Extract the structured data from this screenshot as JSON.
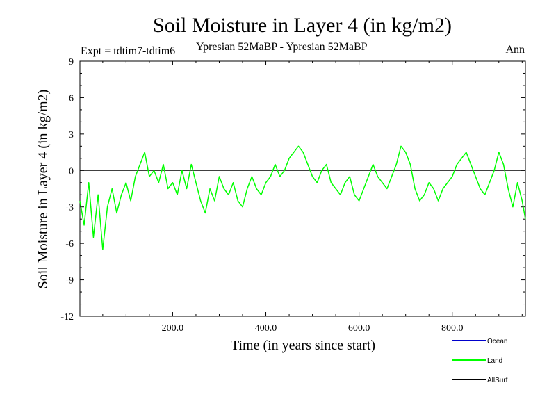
{
  "chart_data": {
    "type": "line",
    "title": "Soil Moisture in Layer 4 (in kg/m2)",
    "subtitle_left": "Expt = tdtim7-tdtim6",
    "subtitle_center": "Ypresian  52MaBP - Ypresian  52MaBP",
    "subtitle_right": "Ann",
    "xlabel": "Time (in years since start)",
    "ylabel": "Soil Moisture in Layer 4 (in kg/m2)",
    "xlim": [
      1,
      957
    ],
    "ylim": [
      -12,
      9
    ],
    "xticks": [
      200,
      400,
      600,
      800
    ],
    "xtick_labels": [
      "200.0",
      "400.0",
      "600.0",
      "800.0"
    ],
    "yticks": [
      -12,
      -9,
      -6,
      -3,
      0,
      3,
      6,
      9
    ],
    "ytick_labels": [
      "-12",
      "-9",
      "-6",
      "-3",
      "0",
      "3",
      "6",
      "9"
    ],
    "zero_line": 0,
    "legend_position": "bottom-right",
    "series": [
      {
        "name": "Ocean",
        "color": "#0000cc",
        "x": [],
        "values": []
      },
      {
        "name": "Land",
        "color": "#00ff00",
        "x": [
          1,
          10,
          20,
          30,
          40,
          50,
          60,
          70,
          80,
          90,
          100,
          110,
          120,
          130,
          140,
          150,
          160,
          170,
          180,
          190,
          200,
          210,
          220,
          230,
          240,
          250,
          260,
          270,
          280,
          290,
          300,
          310,
          320,
          330,
          340,
          350,
          360,
          370,
          380,
          390,
          400,
          410,
          420,
          430,
          440,
          450,
          460,
          470,
          480,
          490,
          500,
          510,
          520,
          530,
          540,
          550,
          560,
          570,
          580,
          590,
          600,
          610,
          620,
          630,
          640,
          650,
          660,
          670,
          680,
          690,
          700,
          710,
          720,
          730,
          740,
          750,
          760,
          770,
          780,
          790,
          800,
          810,
          820,
          830,
          840,
          850,
          860,
          870,
          880,
          890,
          900,
          910,
          920,
          930,
          940,
          950,
          957
        ],
        "values": [
          -2.5,
          -4.5,
          -1.0,
          -5.5,
          -2.0,
          -6.5,
          -3.0,
          -1.5,
          -3.5,
          -2.0,
          -1.0,
          -2.5,
          -0.5,
          0.5,
          1.5,
          -0.5,
          0.0,
          -1.0,
          0.5,
          -1.5,
          -1.0,
          -2.0,
          0.0,
          -1.5,
          0.5,
          -1.0,
          -2.5,
          -3.5,
          -1.5,
          -2.5,
          -0.5,
          -1.5,
          -2.0,
          -1.0,
          -2.5,
          -3.0,
          -1.5,
          -0.5,
          -1.5,
          -2.0,
          -1.0,
          -0.5,
          0.5,
          -0.5,
          0.0,
          1.0,
          1.5,
          2.0,
          1.5,
          0.5,
          -0.5,
          -1.0,
          0.0,
          0.5,
          -1.0,
          -1.5,
          -2.0,
          -1.0,
          -0.5,
          -2.0,
          -2.5,
          -1.5,
          -0.5,
          0.5,
          -0.5,
          -1.0,
          -1.5,
          -0.5,
          0.5,
          2.0,
          1.5,
          0.5,
          -1.5,
          -2.5,
          -2.0,
          -1.0,
          -1.5,
          -2.5,
          -1.5,
          -1.0,
          -0.5,
          0.5,
          1.0,
          1.5,
          0.5,
          -0.5,
          -1.5,
          -2.0,
          -1.0,
          0.0,
          1.5,
          0.5,
          -1.5,
          -3.0,
          -1.0,
          -2.5,
          -4.0
        ]
      },
      {
        "name": "AllSurf",
        "color": "#000000",
        "x": [],
        "values": []
      }
    ]
  }
}
